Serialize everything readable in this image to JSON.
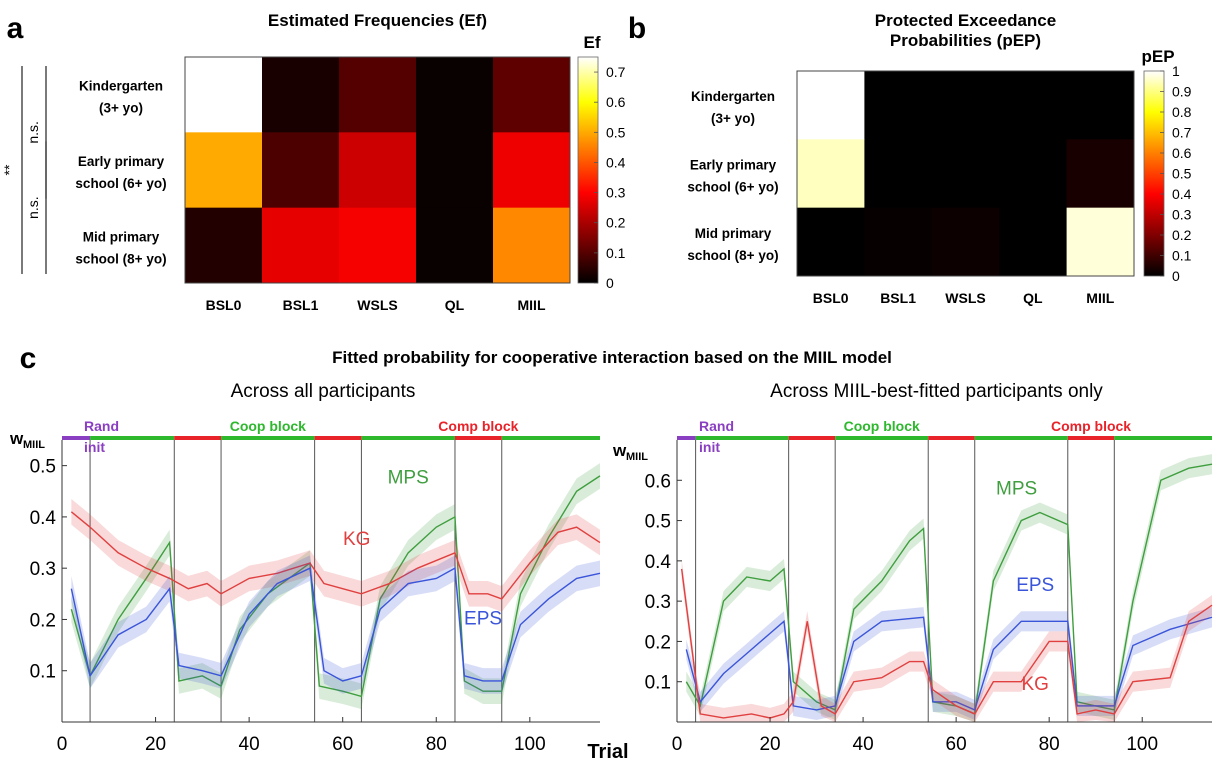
{
  "panel_labels": [
    "a",
    "b",
    "c"
  ],
  "chart_data": [
    {
      "type": "heatmap",
      "panel": "a",
      "title": "Estimated Frequencies (Ef)",
      "rows": [
        "Kindergarten|(3+ yo)",
        "Early primary|school (6+ yo)",
        "Mid primary|school (8+ yo)"
      ],
      "columns": [
        "BSL0",
        "BSL1",
        "WSLS",
        "QL",
        "MIIL"
      ],
      "values": [
        [
          0.75,
          0.03,
          0.1,
          0.01,
          0.11
        ],
        [
          0.5,
          0.09,
          0.24,
          0.01,
          0.28
        ],
        [
          0.04,
          0.27,
          0.29,
          0.01,
          0.46
        ]
      ],
      "colorbar_label": "Ef",
      "clim": [
        0,
        0.75
      ],
      "colorbar_ticks": [
        "0",
        "0.1",
        "0.2",
        "0.3",
        "0.4",
        "0.5",
        "0.6",
        "0.7"
      ],
      "significance": [
        {
          "label": "n.s.",
          "rows": [
            0,
            1
          ]
        },
        {
          "label": "n.s.",
          "rows": [
            1,
            2
          ]
        },
        {
          "label": "**",
          "rows": [
            0,
            2
          ]
        }
      ]
    },
    {
      "type": "heatmap",
      "panel": "b",
      "title": "Protected Exceedance|Probabilities (pEP)",
      "rows": [
        "Kindergarten|(3+ yo)",
        "Early primary|school (6+ yo)",
        "Mid primary|school (8+ yo)"
      ],
      "columns": [
        "BSL0",
        "BSL1",
        "WSLS",
        "QL",
        "MIIL"
      ],
      "values": [
        [
          1.0,
          0.0,
          0.0,
          0.0,
          0.0
        ],
        [
          0.95,
          0.0,
          0.0,
          0.0,
          0.04
        ],
        [
          0.0,
          0.01,
          0.02,
          0.0,
          0.97
        ]
      ],
      "colorbar_label": "pEP",
      "clim": [
        0,
        1
      ],
      "colorbar_ticks": [
        "0",
        "0.1",
        "0.2",
        "0.3",
        "0.4",
        "0.5",
        "0.6",
        "0.7",
        "0.8",
        "0.9",
        "1"
      ]
    },
    {
      "type": "line",
      "panel": "c",
      "title": "Fitted probability for cooperative interaction based on the MIIL model",
      "subtitle": "Across all participants",
      "xlabel": "Trial",
      "ylabel": "w",
      "ylabel_sub": "MIIL",
      "xlim": [
        0,
        115
      ],
      "ylim": [
        0,
        0.55
      ],
      "xticks": [
        0,
        20,
        40,
        60,
        80,
        100
      ],
      "yticks": [
        0.1,
        0.2,
        0.3,
        0.4,
        0.5
      ],
      "block_boundaries": [
        6,
        24,
        34,
        54,
        64,
        84,
        94
      ],
      "blocks": [
        {
          "label": "Rand|init",
          "range": [
            0,
            6
          ],
          "color": "#8a3fc2"
        },
        {
          "range": [
            6,
            24
          ],
          "color": "#2eb82e"
        },
        {
          "range": [
            24,
            34
          ],
          "color": "#e8232a"
        },
        {
          "label": "Coop block",
          "range": [
            34,
            54
          ],
          "color": "#2eb82e"
        },
        {
          "range": [
            54,
            64
          ],
          "color": "#e8232a"
        },
        {
          "range": [
            64,
            84
          ],
          "color": "#2eb82e"
        },
        {
          "label": "Comp block",
          "range": [
            84,
            94
          ],
          "color": "#e8232a"
        },
        {
          "range": [
            94,
            115
          ],
          "color": "#2eb82e"
        }
      ],
      "series": [
        {
          "name": "MPS",
          "color": "#3f9e3f",
          "points": [
            [
              2,
              0.22
            ],
            [
              6,
              0.09
            ],
            [
              12,
              0.2
            ],
            [
              18,
              0.28
            ],
            [
              23,
              0.35
            ],
            [
              25,
              0.08
            ],
            [
              30,
              0.09
            ],
            [
              34,
              0.07
            ],
            [
              38,
              0.18
            ],
            [
              44,
              0.25
            ],
            [
              50,
              0.29
            ],
            [
              53,
              0.31
            ],
            [
              55,
              0.07
            ],
            [
              60,
              0.06
            ],
            [
              64,
              0.05
            ],
            [
              68,
              0.24
            ],
            [
              74,
              0.33
            ],
            [
              80,
              0.38
            ],
            [
              84,
              0.4
            ],
            [
              86,
              0.08
            ],
            [
              90,
              0.06
            ],
            [
              94,
              0.06
            ],
            [
              98,
              0.25
            ],
            [
              104,
              0.36
            ],
            [
              110,
              0.45
            ],
            [
              115,
              0.48
            ]
          ]
        },
        {
          "name": "KG",
          "color": "#e04040",
          "points": [
            [
              2,
              0.41
            ],
            [
              6,
              0.38
            ],
            [
              12,
              0.33
            ],
            [
              18,
              0.3
            ],
            [
              23,
              0.28
            ],
            [
              27,
              0.26
            ],
            [
              31,
              0.27
            ],
            [
              34,
              0.25
            ],
            [
              40,
              0.28
            ],
            [
              46,
              0.29
            ],
            [
              53,
              0.31
            ],
            [
              56,
              0.27
            ],
            [
              60,
              0.26
            ],
            [
              64,
              0.25
            ],
            [
              70,
              0.27
            ],
            [
              76,
              0.3
            ],
            [
              84,
              0.33
            ],
            [
              87,
              0.25
            ],
            [
              91,
              0.25
            ],
            [
              94,
              0.24
            ],
            [
              100,
              0.31
            ],
            [
              106,
              0.37
            ],
            [
              110,
              0.38
            ],
            [
              115,
              0.35
            ]
          ]
        },
        {
          "name": "EPS",
          "color": "#3a55d9",
          "points": [
            [
              2,
              0.26
            ],
            [
              6,
              0.09
            ],
            [
              12,
              0.17
            ],
            [
              18,
              0.2
            ],
            [
              23,
              0.26
            ],
            [
              25,
              0.11
            ],
            [
              30,
              0.1
            ],
            [
              34,
              0.09
            ],
            [
              40,
              0.21
            ],
            [
              46,
              0.27
            ],
            [
              53,
              0.3
            ],
            [
              56,
              0.1
            ],
            [
              60,
              0.08
            ],
            [
              64,
              0.09
            ],
            [
              68,
              0.22
            ],
            [
              74,
              0.27
            ],
            [
              80,
              0.28
            ],
            [
              84,
              0.3
            ],
            [
              86,
              0.09
            ],
            [
              90,
              0.08
            ],
            [
              94,
              0.08
            ],
            [
              98,
              0.19
            ],
            [
              104,
              0.24
            ],
            [
              110,
              0.28
            ],
            [
              115,
              0.29
            ]
          ]
        }
      ]
    },
    {
      "type": "line",
      "panel": "c",
      "subtitle": "Across MIIL-best-fitted participants only",
      "ylabel": "w",
      "ylabel_sub": "MIIL",
      "xlim": [
        0,
        115
      ],
      "ylim": [
        0,
        0.7
      ],
      "xticks": [
        0,
        20,
        40,
        60,
        80,
        100
      ],
      "yticks": [
        0.1,
        0.2,
        0.3,
        0.4,
        0.5,
        0.6
      ],
      "block_boundaries": [
        4,
        24,
        34,
        54,
        64,
        84,
        94
      ],
      "blocks": [
        {
          "label": "Rand|init",
          "range": [
            0,
            4
          ],
          "color": "#8a3fc2"
        },
        {
          "range": [
            4,
            24
          ],
          "color": "#2eb82e"
        },
        {
          "range": [
            24,
            34
          ],
          "color": "#e8232a"
        },
        {
          "label": "Coop block",
          "range": [
            34,
            54
          ],
          "color": "#2eb82e"
        },
        {
          "range": [
            54,
            64
          ],
          "color": "#e8232a"
        },
        {
          "range": [
            64,
            84
          ],
          "color": "#2eb82e"
        },
        {
          "label": "Comp block",
          "range": [
            84,
            94
          ],
          "color": "#e8232a"
        },
        {
          "range": [
            94,
            115
          ],
          "color": "#2eb82e"
        }
      ],
      "series": [
        {
          "name": "MPS",
          "color": "#3f9e3f",
          "points": [
            [
              2,
              0.1
            ],
            [
              5,
              0.04
            ],
            [
              10,
              0.3
            ],
            [
              15,
              0.36
            ],
            [
              20,
              0.35
            ],
            [
              23,
              0.38
            ],
            [
              25,
              0.1
            ],
            [
              30,
              0.05
            ],
            [
              34,
              0.03
            ],
            [
              38,
              0.28
            ],
            [
              44,
              0.35
            ],
            [
              50,
              0.45
            ],
            [
              53,
              0.48
            ],
            [
              55,
              0.05
            ],
            [
              60,
              0.04
            ],
            [
              64,
              0.02
            ],
            [
              68,
              0.35
            ],
            [
              74,
              0.5
            ],
            [
              78,
              0.52
            ],
            [
              84,
              0.49
            ],
            [
              86,
              0.05
            ],
            [
              90,
              0.04
            ],
            [
              94,
              0.03
            ],
            [
              98,
              0.3
            ],
            [
              104,
              0.6
            ],
            [
              110,
              0.63
            ],
            [
              115,
              0.64
            ]
          ]
        },
        {
          "name": "EPS",
          "color": "#3a55d9",
          "points": [
            [
              2,
              0.18
            ],
            [
              5,
              0.05
            ],
            [
              10,
              0.12
            ],
            [
              15,
              0.17
            ],
            [
              20,
              0.22
            ],
            [
              23,
              0.25
            ],
            [
              25,
              0.04
            ],
            [
              30,
              0.03
            ],
            [
              34,
              0.04
            ],
            [
              38,
              0.2
            ],
            [
              44,
              0.25
            ],
            [
              53,
              0.26
            ],
            [
              55,
              0.05
            ],
            [
              60,
              0.05
            ],
            [
              64,
              0.03
            ],
            [
              68,
              0.18
            ],
            [
              74,
              0.25
            ],
            [
              84,
              0.25
            ],
            [
              86,
              0.04
            ],
            [
              90,
              0.04
            ],
            [
              94,
              0.04
            ],
            [
              98,
              0.19
            ],
            [
              106,
              0.23
            ],
            [
              115,
              0.26
            ]
          ]
        },
        {
          "name": "KG",
          "color": "#e04040",
          "points": [
            [
              1,
              0.38
            ],
            [
              3,
              0.2
            ],
            [
              5,
              0.02
            ],
            [
              10,
              0.01
            ],
            [
              16,
              0.02
            ],
            [
              20,
              0.01
            ],
            [
              23,
              0.02
            ],
            [
              25,
              0.05
            ],
            [
              28,
              0.25
            ],
            [
              31,
              0.04
            ],
            [
              34,
              0.02
            ],
            [
              38,
              0.1
            ],
            [
              44,
              0.11
            ],
            [
              50,
              0.15
            ],
            [
              53,
              0.15
            ],
            [
              55,
              0.08
            ],
            [
              60,
              0.04
            ],
            [
              64,
              0.02
            ],
            [
              68,
              0.1
            ],
            [
              74,
              0.1
            ],
            [
              80,
              0.2
            ],
            [
              84,
              0.2
            ],
            [
              86,
              0.02
            ],
            [
              90,
              0.03
            ],
            [
              94,
              0.02
            ],
            [
              98,
              0.1
            ],
            [
              106,
              0.11
            ],
            [
              110,
              0.25
            ],
            [
              115,
              0.29
            ]
          ]
        }
      ]
    }
  ]
}
